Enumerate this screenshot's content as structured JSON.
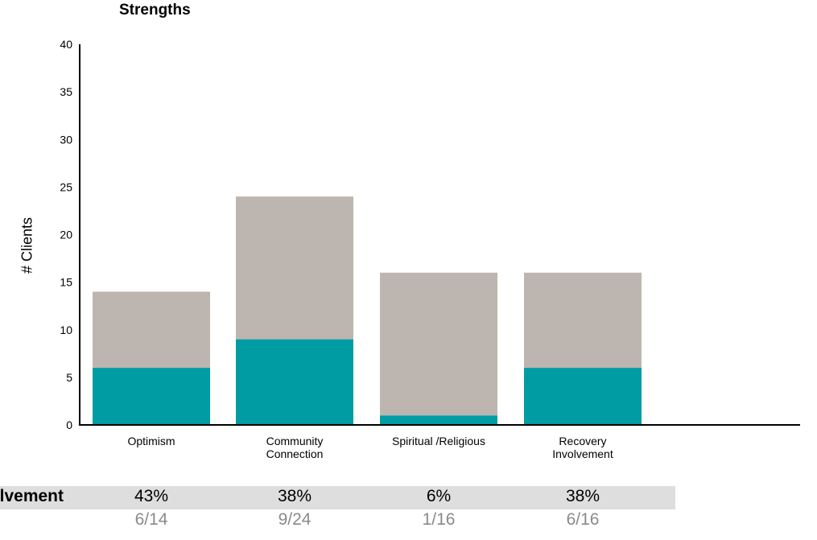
{
  "chart_data": {
    "type": "bar",
    "stacked": true,
    "title": "Strengths",
    "ylabel": "# Clients",
    "xlabel": "",
    "ylim": [
      0,
      40
    ],
    "yticks": [
      0,
      5,
      10,
      15,
      20,
      25,
      30,
      35,
      40
    ],
    "categories": [
      "Optimism",
      "Community Connection",
      "Spiritual /Religious",
      "Recovery Involvement"
    ],
    "category_lines": [
      [
        "Optimism"
      ],
      [
        "Community",
        "Connection"
      ],
      [
        "Spiritual /Religious"
      ],
      [
        "Recovery",
        "Involvement"
      ]
    ],
    "series": [
      {
        "values": [
          6,
          9,
          1,
          6
        ],
        "color": "#009ca4"
      },
      {
        "values": [
          8,
          15,
          15,
          10
        ],
        "color": "#bdb5af"
      }
    ],
    "totals": [
      14,
      24,
      16,
      16
    ],
    "grid": false
  },
  "table": {
    "row_label": "Involvement",
    "percents": [
      "43%",
      "38%",
      "6%",
      "38%"
    ],
    "fractions": [
      "6/14",
      "9/24",
      "1/16",
      "6/16"
    ]
  }
}
